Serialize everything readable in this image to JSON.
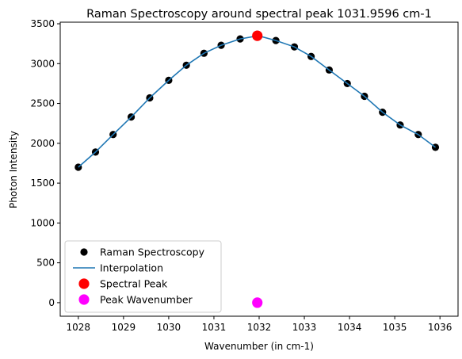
{
  "chart_data": {
    "type": "scatter",
    "title": "Raman Spectroscopy around spectral peak 1031.9596 cm-1",
    "xlabel": "Wavenumber (in cm-1)",
    "ylabel": "Photon Intensity",
    "xlim": [
      1027.6,
      1036.4
    ],
    "ylim": [
      -170,
      3520
    ],
    "xticks": [
      1028,
      1029,
      1030,
      1031,
      1032,
      1033,
      1034,
      1035,
      1036
    ],
    "yticks": [
      0,
      500,
      1000,
      1500,
      2000,
      2500,
      3000,
      3500
    ],
    "grid": false,
    "legend_position": "lower-left",
    "series": [
      {
        "name": "Raman Spectroscopy",
        "kind": "scatter",
        "color": "#000000",
        "x": [
          1028.0,
          1028.38,
          1028.77,
          1029.17,
          1029.58,
          1030.0,
          1030.39,
          1030.78,
          1031.16,
          1031.58,
          1031.98,
          1032.37,
          1032.78,
          1033.15,
          1033.55,
          1033.95,
          1034.33,
          1034.73,
          1035.12,
          1035.52,
          1035.9
        ],
        "y": [
          1700,
          1890,
          2110,
          2330,
          2570,
          2790,
          2980,
          3130,
          3230,
          3310,
          3350,
          3290,
          3210,
          3090,
          2920,
          2750,
          2590,
          2390,
          2230,
          2110,
          1950
        ]
      },
      {
        "name": "Interpolation",
        "kind": "line",
        "color": "#1f77b4",
        "x": [
          1028.0,
          1028.38,
          1028.77,
          1029.17,
          1029.58,
          1030.0,
          1030.39,
          1030.78,
          1031.16,
          1031.58,
          1031.98,
          1032.37,
          1032.78,
          1033.15,
          1033.55,
          1033.95,
          1034.33,
          1034.73,
          1035.12,
          1035.52,
          1035.9
        ],
        "y": [
          1700,
          1890,
          2110,
          2330,
          2570,
          2790,
          2980,
          3130,
          3230,
          3310,
          3350,
          3290,
          3210,
          3090,
          2920,
          2750,
          2590,
          2390,
          2230,
          2110,
          1950
        ]
      },
      {
        "name": "Spectral Peak",
        "kind": "scatter",
        "color": "#ff0000",
        "x": [
          1031.96
        ],
        "y": [
          3350
        ]
      },
      {
        "name": "Peak Wavenumber",
        "kind": "scatter",
        "color": "#ff00ff",
        "x": [
          1031.96
        ],
        "y": [
          0
        ]
      }
    ]
  }
}
